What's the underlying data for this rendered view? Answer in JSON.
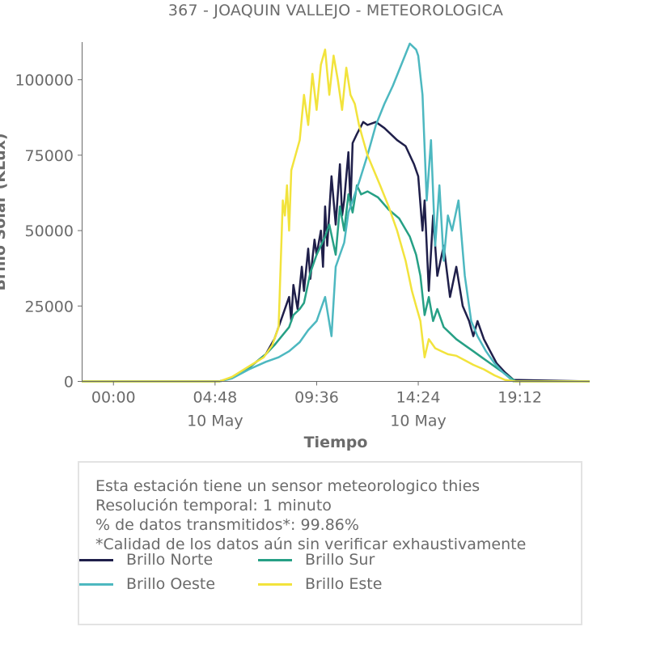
{
  "title": "367 - JOAQUIN VALLEJO - METEOROLOGICA",
  "info_box": {
    "lines": [
      "Esta estación tiene un sensor meteorologico thies",
      "Resolución temporal: 1 minuto",
      "% de datos transmitidos*: 99.86%",
      "*Calidad de los datos aún sin verificar exhaustivamente"
    ]
  },
  "chart_data": {
    "type": "line",
    "title": "367 - JOAQUIN VALLEJO - METEOROLOGICA",
    "xlabel": "Tiempo",
    "ylabel": "Brillo Solar (KLux)",
    "x_units": "hours since 10 May 00:00",
    "xlim": [
      -1.5,
      22.5
    ],
    "ylim": [
      0,
      112500
    ],
    "x_ticks": [
      {
        "value": 0.0,
        "label": "00:00",
        "sublabel": ""
      },
      {
        "value": 4.8,
        "label": "04:48",
        "sublabel": "10 May"
      },
      {
        "value": 9.6,
        "label": "09:36",
        "sublabel": ""
      },
      {
        "value": 14.4,
        "label": "14:24",
        "sublabel": "10 May"
      },
      {
        "value": 19.2,
        "label": "19:12",
        "sublabel": ""
      }
    ],
    "y_ticks": [
      0,
      25000,
      50000,
      75000,
      100000
    ],
    "y_tick_labels": [
      "0",
      "25000",
      "50000",
      "75000",
      "100000"
    ],
    "grid": false,
    "legend_position": "bottom",
    "series": [
      {
        "name": "Brillo Norte",
        "color": "#1f1f4a",
        "x": [
          -1.5,
          5.0,
          5.6,
          6.4,
          7.2,
          7.6,
          8.3,
          8.4,
          8.5,
          8.7,
          8.9,
          9.0,
          9.2,
          9.3,
          9.5,
          9.6,
          9.8,
          9.9,
          10.0,
          10.1,
          10.3,
          10.5,
          10.7,
          10.8,
          10.9,
          11.1,
          11.2,
          11.3,
          11.5,
          11.8,
          12.0,
          12.4,
          12.8,
          13.1,
          13.4,
          13.8,
          14.2,
          14.4,
          14.6,
          14.7,
          14.9,
          15.1,
          15.3,
          15.6,
          15.9,
          16.2,
          16.5,
          16.8,
          17.0,
          17.2,
          17.5,
          17.8,
          18.1,
          18.5,
          18.9,
          22.5
        ],
        "values": [
          0,
          0,
          1200,
          4500,
          9000,
          14000,
          28000,
          20000,
          32000,
          24000,
          38000,
          30000,
          44000,
          34000,
          47000,
          42000,
          50000,
          38000,
          58000,
          45000,
          68000,
          52000,
          72000,
          55000,
          60000,
          76000,
          58000,
          79000,
          82000,
          86000,
          85000,
          86000,
          84000,
          82000,
          80000,
          78000,
          72000,
          68000,
          50000,
          60000,
          30000,
          55000,
          35000,
          45000,
          28000,
          38000,
          25000,
          20000,
          15000,
          20000,
          14000,
          10000,
          6000,
          3000,
          500,
          0
        ]
      },
      {
        "name": "Brillo Sur",
        "color": "#26a085",
        "x": [
          -1.5,
          5.0,
          5.6,
          6.4,
          7.2,
          7.6,
          8.3,
          8.5,
          8.8,
          9.0,
          9.3,
          9.6,
          10.0,
          10.2,
          10.5,
          10.7,
          10.9,
          11.1,
          11.3,
          11.5,
          11.7,
          12.0,
          12.5,
          13.0,
          13.5,
          14.0,
          14.3,
          14.5,
          14.7,
          14.9,
          15.1,
          15.3,
          15.6,
          15.9,
          16.2,
          16.6,
          17.0,
          17.4,
          17.8,
          18.2,
          18.6,
          19.0,
          22.5
        ],
        "values": [
          0,
          0,
          1200,
          4500,
          9000,
          12000,
          18000,
          22000,
          24000,
          26000,
          36000,
          42000,
          48000,
          52000,
          42000,
          58000,
          50000,
          62000,
          56000,
          65000,
          62000,
          63000,
          61000,
          57000,
          54000,
          48000,
          42000,
          35000,
          22000,
          28000,
          20000,
          24000,
          18000,
          16000,
          14000,
          12000,
          10000,
          8000,
          6000,
          4000,
          2000,
          0,
          0
        ]
      },
      {
        "name": "Brillo Oeste",
        "color": "#4db8c0",
        "x": [
          -1.5,
          5.0,
          5.6,
          6.4,
          7.2,
          7.8,
          8.3,
          8.8,
          9.2,
          9.6,
          10.0,
          10.3,
          10.5,
          10.7,
          10.9,
          11.1,
          11.3,
          11.6,
          12.0,
          12.4,
          12.8,
          13.2,
          13.6,
          14.0,
          14.3,
          14.4,
          14.6,
          14.8,
          15.0,
          15.2,
          15.4,
          15.6,
          15.8,
          16.0,
          16.3,
          16.6,
          16.9,
          17.2,
          17.6,
          18.0,
          18.4,
          18.9,
          22.5
        ],
        "values": [
          0,
          0,
          1000,
          4000,
          6500,
          8000,
          10000,
          13000,
          17000,
          20000,
          28000,
          15000,
          38000,
          42000,
          46000,
          56000,
          60000,
          66000,
          75000,
          85000,
          92000,
          98000,
          105000,
          112000,
          110000,
          108000,
          95000,
          60000,
          80000,
          45000,
          65000,
          40000,
          55000,
          50000,
          60000,
          35000,
          20000,
          15000,
          10000,
          6000,
          3000,
          0,
          0
        ]
      },
      {
        "name": "Brillo Este",
        "color": "#f2e33c",
        "x": [
          -1.5,
          5.0,
          5.6,
          6.4,
          7.1,
          7.5,
          7.8,
          8.0,
          8.1,
          8.2,
          8.3,
          8.4,
          8.6,
          8.8,
          9.0,
          9.2,
          9.4,
          9.6,
          9.8,
          10.0,
          10.2,
          10.4,
          10.6,
          10.8,
          11.0,
          11.2,
          11.4,
          11.6,
          11.8,
          12.0,
          12.3,
          12.6,
          13.0,
          13.4,
          13.8,
          14.1,
          14.3,
          14.5,
          14.7,
          14.9,
          15.2,
          15.5,
          15.8,
          16.2,
          16.6,
          17.0,
          17.5,
          18.0,
          18.5,
          19.0,
          22.5
        ],
        "values": [
          0,
          0,
          1500,
          5000,
          8000,
          12000,
          18000,
          60000,
          55000,
          65000,
          50000,
          70000,
          75000,
          80000,
          95000,
          85000,
          102000,
          90000,
          105000,
          110000,
          95000,
          108000,
          100000,
          90000,
          104000,
          95000,
          92000,
          85000,
          80000,
          75000,
          70000,
          65000,
          58000,
          50000,
          40000,
          30000,
          25000,
          20000,
          8000,
          14000,
          11000,
          10000,
          9000,
          8500,
          7000,
          5500,
          4000,
          2000,
          500,
          0,
          0
        ]
      }
    ]
  }
}
